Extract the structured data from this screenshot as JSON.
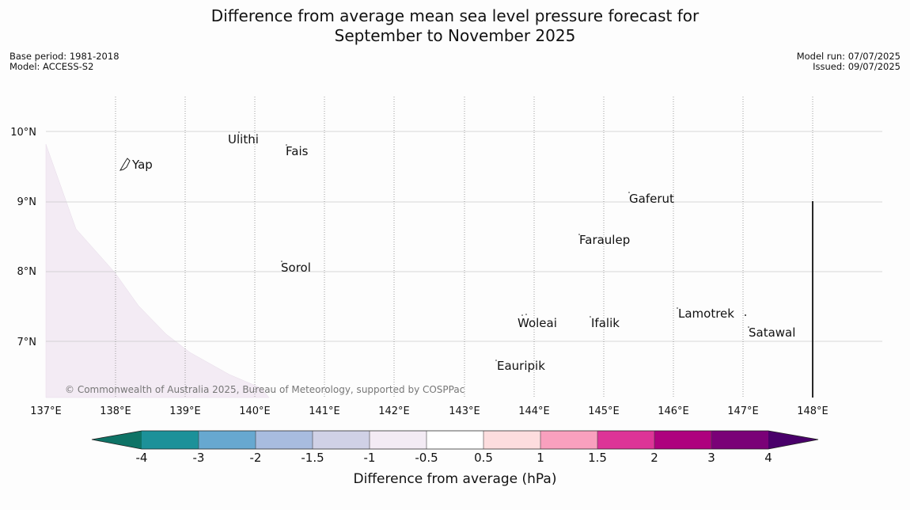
{
  "title_line1": "Difference from average mean sea level pressure forecast for",
  "title_line2": "September to November 2025",
  "meta_left": {
    "base_period": "Base period: 1981-2018",
    "model": "Model: ACCESS-S2"
  },
  "meta_right": {
    "model_run": "Model run: 07/07/2025",
    "issued": "Issued: 09/07/2025"
  },
  "map": {
    "lon_labels": [
      "137°E",
      "138°E",
      "139°E",
      "140°E",
      "141°E",
      "142°E",
      "143°E",
      "144°E",
      "145°E",
      "146°E",
      "147°E",
      "148°E"
    ],
    "lat_labels": [
      "10°N",
      "9°N",
      "8°N",
      "7°N"
    ],
    "places": [
      "Ulithi",
      "Fais",
      "Yap",
      "Gaferut",
      "Faraulep",
      "Sorol",
      "Lamotrek",
      "Woleai",
      "Ifalik",
      "Satawal",
      "Eauripik"
    ],
    "copyright": "© Commonwealth of Australia 2025, Bureau of Meteorology, supported by COSPPac",
    "shaded_region": {
      "category": "-1 to -0.5 hPa",
      "color": "#f3ebf4"
    }
  },
  "colorbar": {
    "title": "Difference from average (hPa)",
    "ticks": [
      "-4",
      "-3",
      "-2",
      "-1.5",
      "-1",
      "-0.5",
      "0.5",
      "1",
      "1.5",
      "2",
      "3",
      "4"
    ],
    "colors": [
      "#0e7366",
      "#1c9199",
      "#67a8d0",
      "#a8bcdf",
      "#d0d1e6",
      "#f3ebf4",
      "#ffffff",
      "#fdddde",
      "#f9a0be",
      "#dd3497",
      "#ae017e",
      "#7a0177",
      "#49006a"
    ]
  }
}
